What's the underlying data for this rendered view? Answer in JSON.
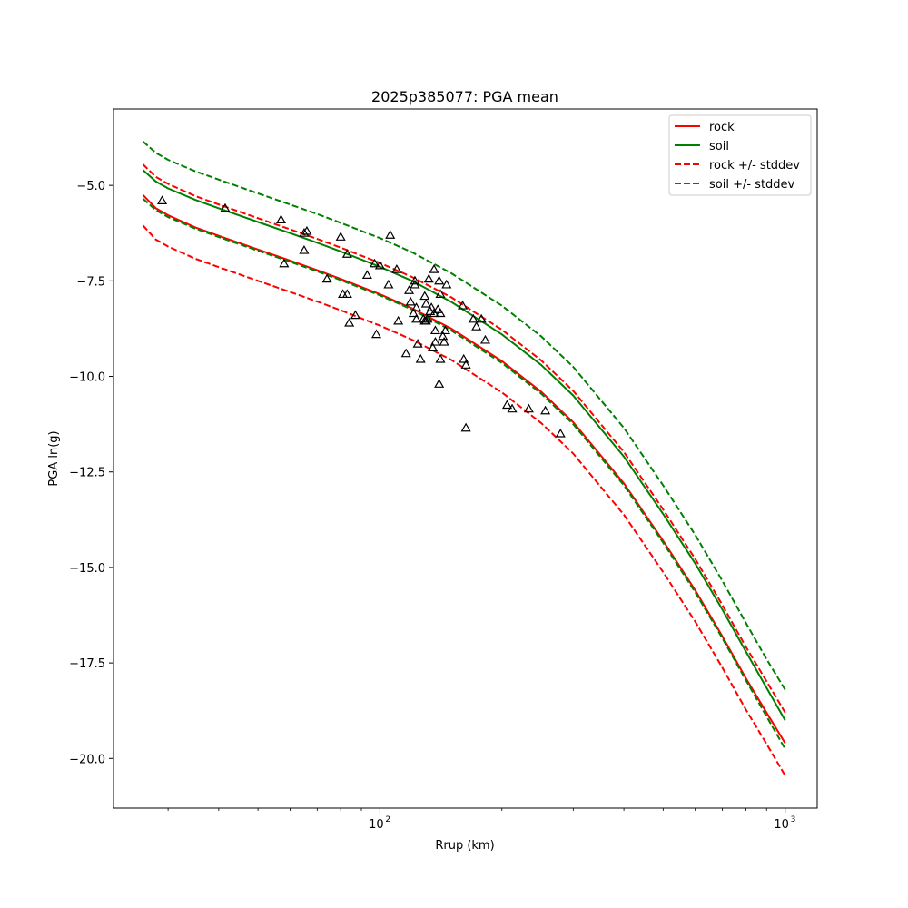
{
  "chart_data": {
    "type": "line",
    "title": "2025p385077: PGA mean",
    "xlabel": "Rrup (km)",
    "ylabel": "PGA ln(g)",
    "xscale": "log",
    "xlim": [
      22,
      1200
    ],
    "ylim": [
      -21.3,
      -3.0
    ],
    "yticks": [
      -5.0,
      -7.5,
      -10.0,
      -12.5,
      -15.0,
      -17.5,
      -20.0
    ],
    "ytick_labels": [
      "−5.0",
      "−7.5",
      "−10.0",
      "−12.5",
      "−15.0",
      "−17.5",
      "−20.0"
    ],
    "xticks_major": [
      100,
      1000
    ],
    "xtick_label_base": "10",
    "xtick_label_exponents": [
      "2",
      "3"
    ],
    "legend_position": "top-right",
    "grid": false,
    "series": [
      {
        "name": "rock",
        "color": "#ff0000",
        "dash": "solid",
        "x": [
          26,
          28,
          30,
          35,
          40,
          50,
          60,
          70,
          80,
          100,
          120,
          150,
          200,
          250,
          300,
          400,
          500,
          600,
          700,
          800,
          900,
          1000
        ],
        "y": [
          -5.25,
          -5.6,
          -5.78,
          -6.1,
          -6.32,
          -6.68,
          -6.97,
          -7.22,
          -7.45,
          -7.85,
          -8.22,
          -8.75,
          -9.6,
          -10.4,
          -11.2,
          -12.8,
          -14.3,
          -15.6,
          -16.8,
          -17.9,
          -18.8,
          -19.6
        ]
      },
      {
        "name": "soil",
        "color": "#008000",
        "dash": "solid",
        "x": [
          26,
          28,
          30,
          35,
          40,
          50,
          60,
          70,
          80,
          100,
          120,
          150,
          200,
          250,
          300,
          400,
          500,
          600,
          700,
          800,
          900,
          1000
        ],
        "y": [
          -4.6,
          -4.9,
          -5.08,
          -5.38,
          -5.6,
          -5.96,
          -6.25,
          -6.5,
          -6.73,
          -7.13,
          -7.5,
          -8.05,
          -8.9,
          -9.7,
          -10.5,
          -12.1,
          -13.6,
          -14.9,
          -16.1,
          -17.2,
          -18.15,
          -19.0
        ]
      },
      {
        "name": "rock +/- stddev",
        "color": "#ff0000",
        "dash": "dashed",
        "x": [
          26,
          28,
          30,
          35,
          40,
          50,
          60,
          70,
          80,
          100,
          120,
          150,
          200,
          250,
          300,
          400,
          500,
          600,
          700,
          800,
          900,
          1000
        ],
        "y": [
          -4.45,
          -4.78,
          -4.96,
          -5.28,
          -5.5,
          -5.86,
          -6.15,
          -6.4,
          -6.63,
          -7.03,
          -7.4,
          -7.93,
          -8.78,
          -9.58,
          -10.38,
          -11.98,
          -13.48,
          -14.78,
          -15.98,
          -17.08,
          -17.98,
          -18.8
        ]
      },
      {
        "name": "rock +/- stddev lower",
        "color": "#ff0000",
        "dash": "dashed",
        "x": [
          26,
          28,
          30,
          35,
          40,
          50,
          60,
          70,
          80,
          100,
          120,
          150,
          200,
          250,
          300,
          400,
          500,
          600,
          700,
          800,
          900,
          1000
        ],
        "y": [
          -6.05,
          -6.42,
          -6.6,
          -6.92,
          -7.14,
          -7.5,
          -7.79,
          -8.04,
          -8.27,
          -8.67,
          -9.04,
          -9.57,
          -10.42,
          -11.22,
          -12.02,
          -13.62,
          -15.12,
          -16.42,
          -17.62,
          -18.72,
          -19.62,
          -20.45
        ]
      },
      {
        "name": "soil +/- stddev",
        "color": "#008000",
        "dash": "dashed",
        "x": [
          26,
          28,
          30,
          35,
          40,
          50,
          60,
          70,
          80,
          100,
          120,
          150,
          200,
          250,
          300,
          400,
          500,
          600,
          700,
          800,
          900,
          1000
        ],
        "y": [
          -3.85,
          -4.15,
          -4.33,
          -4.63,
          -4.85,
          -5.21,
          -5.5,
          -5.75,
          -5.98,
          -6.38,
          -6.75,
          -7.3,
          -8.15,
          -8.95,
          -9.75,
          -11.35,
          -12.85,
          -14.15,
          -15.35,
          -16.45,
          -17.4,
          -18.2
        ]
      },
      {
        "name": "soil +/- stddev lower",
        "color": "#008000",
        "dash": "dashed",
        "x": [
          26,
          28,
          30,
          35,
          40,
          50,
          60,
          70,
          80,
          100,
          120,
          150,
          200,
          250,
          300,
          400,
          500,
          600,
          700,
          800,
          900,
          1000
        ],
        "y": [
          -5.35,
          -5.65,
          -5.83,
          -6.13,
          -6.35,
          -6.71,
          -7.0,
          -7.25,
          -7.48,
          -7.88,
          -8.25,
          -8.8,
          -9.65,
          -10.45,
          -11.25,
          -12.85,
          -14.35,
          -15.65,
          -16.85,
          -17.95,
          -18.9,
          -19.75
        ]
      }
    ],
    "legend": [
      {
        "label": "rock",
        "color": "#ff0000",
        "dash": "solid"
      },
      {
        "label": "soil",
        "color": "#008000",
        "dash": "solid"
      },
      {
        "label": "rock +/- stddev",
        "color": "#ff0000",
        "dash": "dashed"
      },
      {
        "label": "soil +/- stddev",
        "color": "#008000",
        "dash": "dashed"
      }
    ],
    "observations": {
      "marker": "triangle-open",
      "color": "#000000",
      "points": [
        [
          29,
          -5.4
        ],
        [
          41.5,
          -5.6
        ],
        [
          57,
          -5.9
        ],
        [
          58,
          -7.05
        ],
        [
          65,
          -6.25
        ],
        [
          66,
          -6.2
        ],
        [
          65,
          -6.7
        ],
        [
          74,
          -7.45
        ],
        [
          80,
          -6.35
        ],
        [
          81,
          -7.85
        ],
        [
          83,
          -6.8
        ],
        [
          83,
          -7.85
        ],
        [
          84,
          -8.6
        ],
        [
          87,
          -8.4
        ],
        [
          93,
          -7.35
        ],
        [
          97,
          -7.05
        ],
        [
          98,
          -8.9
        ],
        [
          100,
          -7.1
        ],
        [
          105,
          -7.6
        ],
        [
          106,
          -6.3
        ],
        [
          110,
          -7.2
        ],
        [
          111,
          -8.55
        ],
        [
          116,
          -9.4
        ],
        [
          118,
          -7.75
        ],
        [
          119,
          -8.05
        ],
        [
          121,
          -8.35
        ],
        [
          122,
          -7.6
        ],
        [
          122,
          -7.5
        ],
        [
          123,
          -8.5
        ],
        [
          123,
          -8.2
        ],
        [
          124,
          -9.15
        ],
        [
          126,
          -9.55
        ],
        [
          128,
          -8.5
        ],
        [
          129,
          -7.9
        ],
        [
          129,
          -8.55
        ],
        [
          130,
          -8.55
        ],
        [
          130,
          -8.1
        ],
        [
          131,
          -8.5
        ],
        [
          132,
          -7.45
        ],
        [
          133,
          -8.3
        ],
        [
          134,
          -8.2
        ],
        [
          135,
          -9.25
        ],
        [
          136,
          -7.2
        ],
        [
          136,
          -8.35
        ],
        [
          137,
          -9.1
        ],
        [
          137,
          -8.8
        ],
        [
          139,
          -8.25
        ],
        [
          140,
          -7.5
        ],
        [
          140,
          -10.2
        ],
        [
          141,
          -7.85
        ],
        [
          141,
          -8.35
        ],
        [
          141,
          -9.55
        ],
        [
          143,
          -8.95
        ],
        [
          144,
          -9.1
        ],
        [
          145,
          -8.8
        ],
        [
          146,
          -7.6
        ],
        [
          160,
          -8.15
        ],
        [
          161,
          -9.55
        ],
        [
          163,
          -9.7
        ],
        [
          163,
          -11.35
        ],
        [
          170,
          -8.5
        ],
        [
          173,
          -8.7
        ],
        [
          178,
          -8.5
        ],
        [
          182,
          -9.05
        ],
        [
          206,
          -10.75
        ],
        [
          212,
          -10.85
        ],
        [
          233,
          -10.85
        ],
        [
          256,
          -10.9
        ],
        [
          279,
          -11.5
        ]
      ]
    }
  }
}
